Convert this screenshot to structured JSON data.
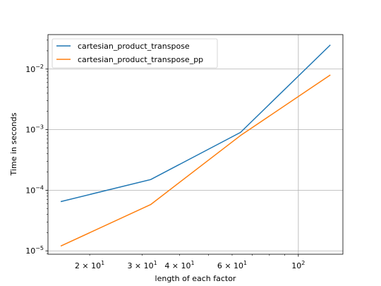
{
  "chart_data": {
    "type": "line",
    "xlabel": "length of each factor",
    "ylabel": "Time in seconds",
    "xscale": "log",
    "yscale": "log",
    "xlim": [
      14.5,
      141
    ],
    "ylim": [
      8.8e-06,
      0.037
    ],
    "grid": "major",
    "legend_position": "top-left",
    "xticks_major": [
      {
        "value": 100,
        "base": "10",
        "exp": "2"
      }
    ],
    "xticks_minor_labeled": [
      {
        "value": 20,
        "coef": "2",
        "exp": "1"
      },
      {
        "value": 30,
        "coef": "3",
        "exp": "1"
      },
      {
        "value": 40,
        "coef": "4",
        "exp": "1"
      },
      {
        "value": 60,
        "coef": "6",
        "exp": "1"
      }
    ],
    "xticks_minor_unlabeled": [
      50,
      70,
      80,
      90
    ],
    "yticks_major": [
      {
        "value": 1e-05,
        "base": "10",
        "exp": "−5"
      },
      {
        "value": 0.0001,
        "base": "10",
        "exp": "−4"
      },
      {
        "value": 0.001,
        "base": "10",
        "exp": "−3"
      },
      {
        "value": 0.01,
        "base": "10",
        "exp": "−2"
      }
    ],
    "series": [
      {
        "name": "cartesian_product_transpose",
        "color": "#1f77b4",
        "x": [
          16,
          32,
          64,
          128
        ],
        "y": [
          6.5e-05,
          0.00015,
          0.0009,
          0.025
        ]
      },
      {
        "name": "cartesian_product_transpose_pp",
        "color": "#ff7f0e",
        "x": [
          16,
          32,
          64,
          128
        ],
        "y": [
          1.2e-05,
          5.8e-05,
          0.0008,
          0.008
        ]
      }
    ]
  }
}
